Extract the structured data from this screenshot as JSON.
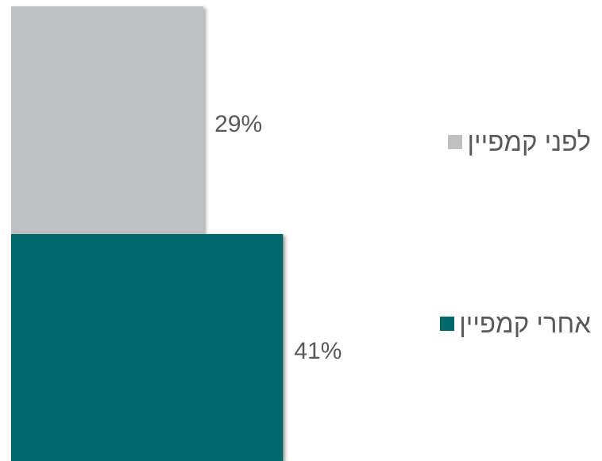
{
  "chart_data": {
    "type": "bar",
    "orientation": "horizontal",
    "categories": [
      "לפני קמפיין",
      "אחרי קמפיין"
    ],
    "values": [
      29,
      41
    ],
    "value_labels": [
      "29%",
      "41%"
    ],
    "colors": [
      "#bfc0c2",
      "#00676a"
    ],
    "xlim": [
      0,
      50
    ],
    "grid": false,
    "legend_position": "right"
  }
}
